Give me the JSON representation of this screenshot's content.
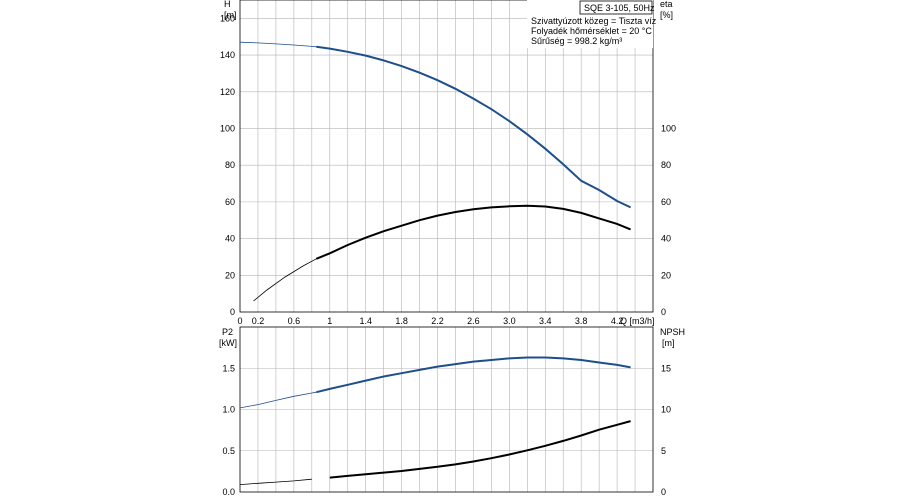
{
  "chart_data": [
    {
      "type": "line",
      "panel": "top",
      "info": {
        "model": "SQE 3-105, 50Hz",
        "lines": [
          "Szivattyúzott közeg = Tiszta víz",
          "Folyadék hőmérséklet = 20 °C",
          "Sűrűség = 998.2 kg/m³"
        ]
      },
      "y_left": {
        "label": "H",
        "unit": "[m]",
        "ylim": [
          0,
          170
        ],
        "ticks": [
          0,
          20,
          40,
          60,
          80,
          100,
          120,
          140,
          160
        ]
      },
      "y_right": {
        "label": "eta",
        "unit": "[%]",
        "ticks": [
          0,
          20,
          40,
          60,
          80,
          100
        ]
      },
      "x": {
        "label": "Q [m3/h]",
        "xlim": [
          0,
          4.6
        ],
        "ticks": [
          "0",
          "0.2",
          "0.6",
          "1",
          "1.4",
          "1.8",
          "2.2",
          "2.6",
          "3.0",
          "3.4",
          "3.8",
          "4.2"
        ]
      },
      "grid": true,
      "series": [
        {
          "key": "H",
          "color": "#1f4e8c",
          "x": [
            0,
            0.2,
            0.4,
            0.6,
            0.8,
            0.85,
            1.0,
            1.2,
            1.4,
            1.6,
            1.8,
            2.0,
            2.2,
            2.4,
            2.6,
            2.8,
            3.0,
            3.2,
            3.4,
            3.6,
            3.8,
            4.0,
            4.2,
            4.35
          ],
          "y": [
            147,
            146.6,
            146.1,
            145.5,
            144.7,
            144.5,
            143.5,
            141.8,
            139.7,
            137.1,
            134.0,
            130.4,
            126.3,
            121.6,
            116.3,
            110.5,
            104.0,
            96.8,
            89.0,
            80.5,
            71.5,
            66.5,
            60.5,
            57
          ]
        },
        {
          "key": "eta",
          "color": "#000000",
          "x": [
            0.15,
            0.3,
            0.5,
            0.7,
            0.85,
            1.0,
            1.2,
            1.4,
            1.6,
            1.8,
            2.0,
            2.2,
            2.4,
            2.6,
            2.8,
            3.0,
            3.2,
            3.4,
            3.6,
            3.8,
            4.0,
            4.2,
            4.35
          ],
          "y": [
            6,
            12,
            19,
            25,
            29,
            32,
            36.5,
            40.5,
            44,
            47,
            50,
            52.5,
            54.5,
            56,
            57,
            57.6,
            57.9,
            57.5,
            56.2,
            54,
            51,
            48,
            45
          ]
        }
      ]
    },
    {
      "type": "line",
      "panel": "bottom",
      "y_left": {
        "label": "P2",
        "unit": "[kW]",
        "ylim": [
          0,
          2
        ],
        "ticks": [
          "0.0",
          "0.5",
          "1.0",
          "1.5"
        ]
      },
      "y_right": {
        "label": "NPSH",
        "unit": "[m]",
        "ticks": [
          0,
          5,
          10,
          15
        ]
      },
      "x": {
        "xlim": [
          0,
          4.6
        ]
      },
      "grid": true,
      "series": [
        {
          "key": "P2",
          "color": "#1f4e8c",
          "x": [
            0,
            0.2,
            0.4,
            0.6,
            0.8,
            0.85,
            1.0,
            1.2,
            1.4,
            1.6,
            1.8,
            2.0,
            2.2,
            2.4,
            2.6,
            2.8,
            3.0,
            3.2,
            3.4,
            3.6,
            3.8,
            4.0,
            4.2,
            4.35
          ],
          "y": [
            1.02,
            1.06,
            1.11,
            1.16,
            1.2,
            1.21,
            1.25,
            1.3,
            1.35,
            1.4,
            1.44,
            1.48,
            1.52,
            1.55,
            1.58,
            1.6,
            1.62,
            1.63,
            1.63,
            1.62,
            1.6,
            1.57,
            1.54,
            1.51
          ]
        },
        {
          "key": "NPSH",
          "color": "#000000",
          "x": [
            0,
            0.2,
            0.4,
            0.6,
            0.8,
            1.0,
            1.2,
            1.4,
            1.6,
            1.8,
            2.0,
            2.2,
            2.4,
            2.6,
            2.8,
            3.0,
            3.2,
            3.4,
            3.6,
            3.8,
            4.0,
            4.2,
            4.35
          ],
          "y": [
            0.9,
            1.05,
            1.2,
            1.35,
            1.55,
            1.75,
            1.95,
            2.15,
            2.35,
            2.55,
            2.8,
            3.05,
            3.35,
            3.7,
            4.1,
            4.55,
            5.05,
            5.6,
            6.2,
            6.85,
            7.55,
            8.15,
            8.6
          ]
        }
      ]
    }
  ]
}
